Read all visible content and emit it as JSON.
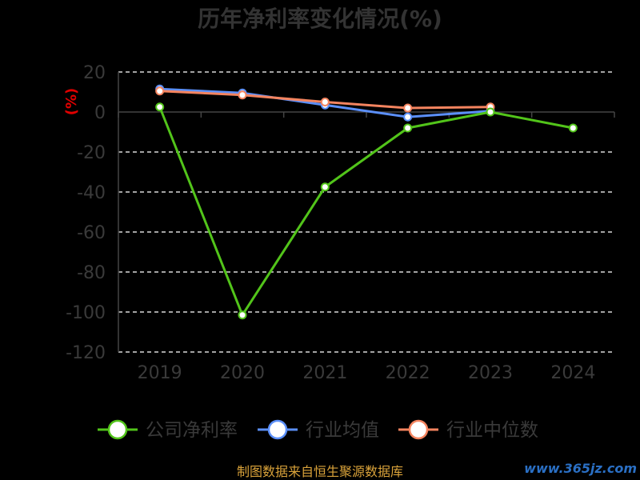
{
  "chart_data": {
    "type": "line",
    "title": "历年净利率变化情况(%)",
    "ylabel": "(%)",
    "categories": [
      "2019",
      "2020",
      "2021",
      "2022",
      "2023",
      "2024"
    ],
    "ylim": [
      -120,
      20
    ],
    "yticks": [
      "20",
      "0",
      "-20",
      "-40",
      "-60",
      "-80",
      "-100",
      "-120"
    ],
    "grid": true,
    "legend_position": "bottom",
    "series": [
      {
        "name": "公司净利率",
        "color": "#52c41a",
        "values": [
          2.5,
          -101.5,
          -37.5,
          -8,
          0,
          -8
        ]
      },
      {
        "name": "行业均值",
        "color": "#5b8ff9",
        "values": [
          11.5,
          9.5,
          3.5,
          -2.5,
          0.5,
          null
        ]
      },
      {
        "name": "行业中位数",
        "color": "#f4845f",
        "values": [
          10.5,
          8.5,
          5.0,
          2.0,
          2.5,
          null
        ]
      }
    ]
  },
  "source_text": "制图数据来自恒生聚源数据库",
  "watermark_text": "www.365jz.com"
}
